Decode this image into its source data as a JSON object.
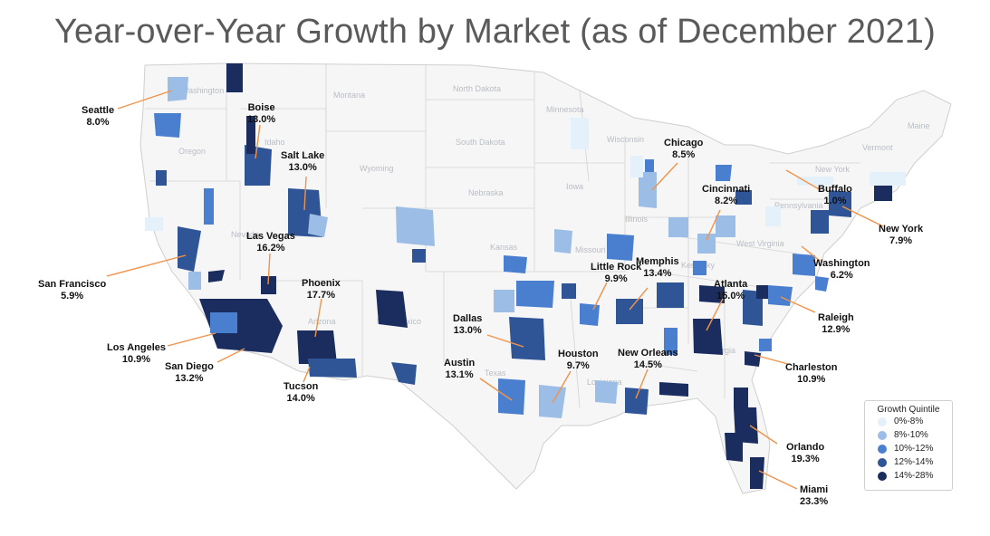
{
  "title": "Year-over-Year Growth by Market (as of December 2021)",
  "legend": {
    "title": "Growth Quintile",
    "items": [
      {
        "label": "0%-8%",
        "color": "#e4f1fb"
      },
      {
        "label": "8%-10%",
        "color": "#9cbde6"
      },
      {
        "label": "10%-12%",
        "color": "#4a7fcf"
      },
      {
        "label": "12%-14%",
        "color": "#2f5596"
      },
      {
        "label": "14%-28%",
        "color": "#1a2d5e"
      }
    ]
  },
  "markets": [
    {
      "name": "Seattle",
      "value": "8.0%"
    },
    {
      "name": "Boise",
      "value": "13.0%"
    },
    {
      "name": "Salt Lake",
      "value": "13.0%"
    },
    {
      "name": "Las Vegas",
      "value": "16.2%"
    },
    {
      "name": "San Francisco",
      "value": "5.9%"
    },
    {
      "name": "Phoenix",
      "value": "17.7%"
    },
    {
      "name": "Los Angeles",
      "value": "10.9%"
    },
    {
      "name": "San Diego",
      "value": "13.2%"
    },
    {
      "name": "Tucson",
      "value": "14.0%"
    },
    {
      "name": "Dallas",
      "value": "13.0%"
    },
    {
      "name": "Austin",
      "value": "13.1%"
    },
    {
      "name": "Houston",
      "value": "9.7%"
    },
    {
      "name": "Little Rock",
      "value": "9.9%"
    },
    {
      "name": "Memphis",
      "value": "13.4%"
    },
    {
      "name": "New Orleans",
      "value": "14.5%"
    },
    {
      "name": "Chicago",
      "value": "8.5%"
    },
    {
      "name": "Cincinnati",
      "value": "8.2%"
    },
    {
      "name": "Atlanta",
      "value": "15.0%"
    },
    {
      "name": "Buffalo",
      "value": "1.0%"
    },
    {
      "name": "New York",
      "value": "7.9%"
    },
    {
      "name": "Washington",
      "value": "6.2%"
    },
    {
      "name": "Raleigh",
      "value": "12.9%"
    },
    {
      "name": "Charleston",
      "value": "10.9%"
    },
    {
      "name": "Orlando",
      "value": "19.3%"
    },
    {
      "name": "Miami",
      "value": "23.3%"
    }
  ],
  "state_labels": [
    "Washington",
    "Oregon",
    "Idaho",
    "Montana",
    "North Dakota",
    "South Dakota",
    "Minnesota",
    "Wisconsin",
    "Wyoming",
    "Nebraska",
    "Iowa",
    "Illinois",
    "Kansas",
    "Missouri",
    "Kentucky",
    "West Virginia",
    "Pennsylvania",
    "New York",
    "Maine",
    "Vermont",
    "Texas",
    "Louisiana",
    "Georgia",
    "Arizona",
    "New Mexico",
    "Nevada"
  ],
  "leader_color": "#f0934a"
}
